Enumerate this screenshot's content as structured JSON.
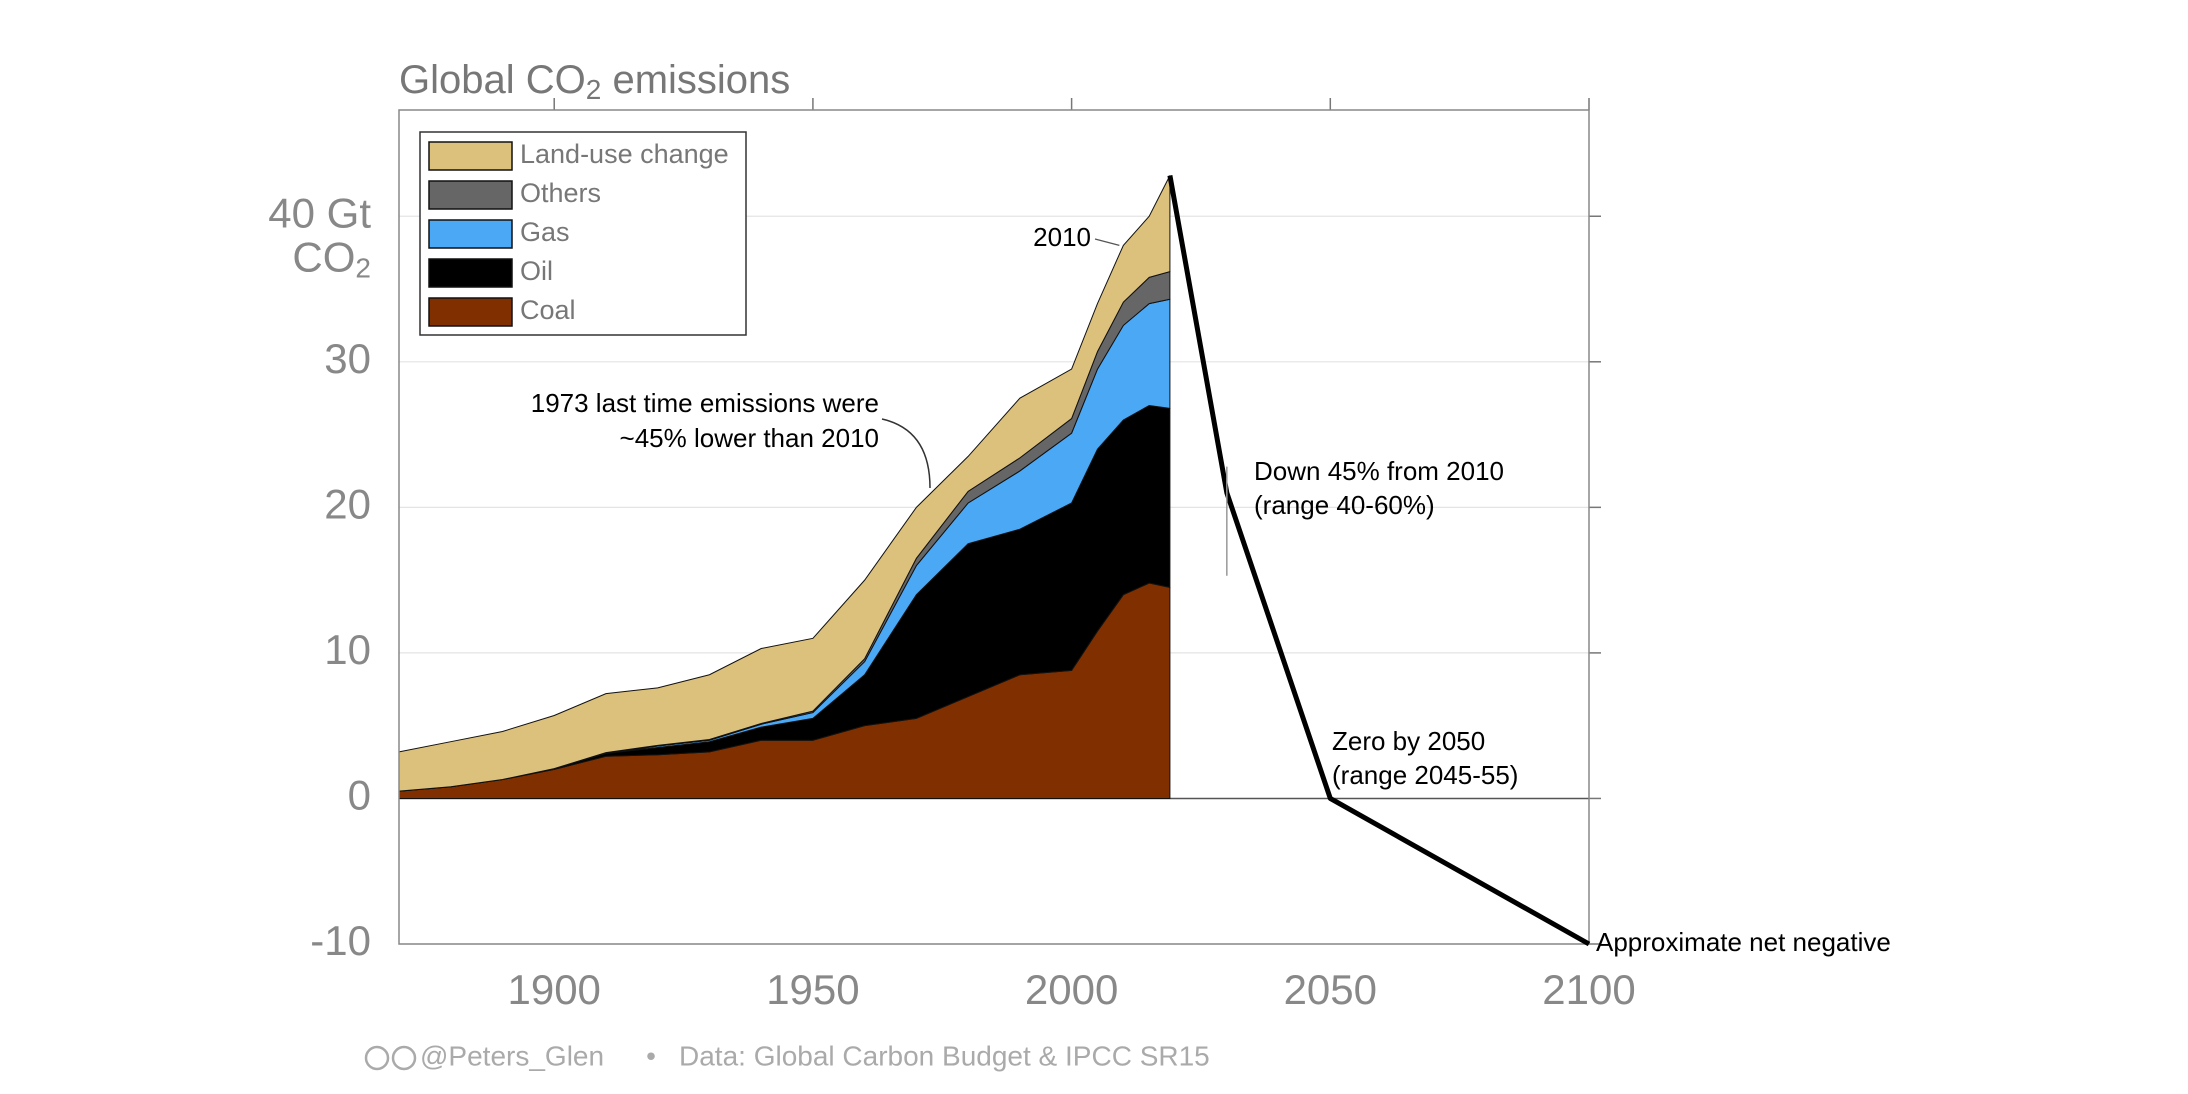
{
  "chart_data": {
    "type": "stacked_area",
    "title_parts": [
      "Global CO",
      "2",
      " emissions"
    ],
    "y_unit_parts": [
      "CO",
      "2"
    ],
    "x": [
      1870,
      1880,
      1890,
      1900,
      1910,
      1920,
      1930,
      1940,
      1950,
      1960,
      1970,
      1980,
      1990,
      2000,
      2005,
      2010,
      2015,
      2019
    ],
    "series": [
      {
        "name": "Coal",
        "color": "#7f2f00",
        "values": [
          0.5,
          0.8,
          1.3,
          2.0,
          2.9,
          3.0,
          3.2,
          4.0,
          4.0,
          5.0,
          5.5,
          7.0,
          8.5,
          8.8,
          11.5,
          14.0,
          14.8,
          14.5
        ]
      },
      {
        "name": "Oil",
        "color": "#000000",
        "values": [
          0,
          0,
          0,
          0.05,
          0.2,
          0.5,
          0.7,
          0.9,
          1.5,
          3.5,
          8.5,
          10.5,
          10.0,
          11.5,
          12.5,
          12.0,
          12.2,
          12.3
        ]
      },
      {
        "name": "Gas",
        "color": "#4aa8f5",
        "values": [
          0,
          0,
          0,
          0,
          0,
          0.1,
          0.1,
          0.2,
          0.4,
          0.9,
          2.0,
          2.8,
          4.0,
          4.8,
          5.5,
          6.5,
          7.0,
          7.5
        ]
      },
      {
        "name": "Others",
        "color": "#666666",
        "values": [
          0,
          0,
          0,
          0,
          0.05,
          0.05,
          0.05,
          0.05,
          0.1,
          0.2,
          0.5,
          0.8,
          0.9,
          1.0,
          1.2,
          1.6,
          1.8,
          1.9
        ]
      },
      {
        "name": "Land-use change",
        "color": "#dcc17c",
        "values": [
          2.7,
          3.1,
          3.3,
          3.65,
          4.05,
          3.95,
          4.45,
          5.15,
          5.0,
          5.4,
          3.5,
          2.4,
          4.1,
          3.4,
          3.3,
          3.9,
          4.2,
          6.6
        ]
      }
    ],
    "projection": {
      "x": [
        2019,
        2030,
        2050,
        2100
      ],
      "values": [
        42.8,
        21,
        0,
        -10
      ],
      "color": "#000000",
      "range": [
        15.3,
        22.8
      ]
    },
    "xlim": [
      1870,
      2100
    ],
    "ylim": [
      -10,
      47.3
    ],
    "xticks": [
      1900,
      1950,
      2000,
      2050,
      2100
    ],
    "yticks": [
      -10,
      0,
      10,
      20,
      30,
      {
        "value": 40,
        "label": "40 Gt"
      }
    ],
    "grid": true,
    "legend": "upper left",
    "annotations": {
      "label_2010": "2010",
      "note_1973": [
        "1973 last time emissions were",
        "~45% lower than 2010"
      ],
      "note_2030": [
        "Down 45% from 2010",
        "(range 40-60%)"
      ],
      "note_2050": [
        "Zero by 2050",
        "(range 2045-55)"
      ],
      "note_2100": "Approximate net negative"
    },
    "footer": {
      "credit": "@Peters_Glen",
      "separator": "•",
      "source": "Data: Global Carbon Budget & IPCC SR15"
    }
  }
}
